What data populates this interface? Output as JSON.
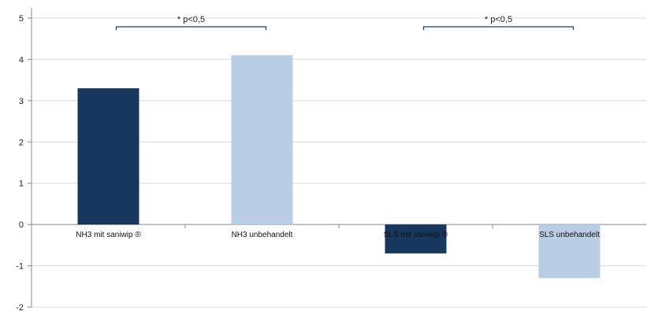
{
  "chart_data": {
    "type": "bar",
    "title": "",
    "xlabel": "",
    "ylabel": "",
    "ylim": [
      -2,
      5
    ],
    "yticks": [
      5,
      4,
      3,
      2,
      1,
      0,
      -1,
      -2
    ],
    "grid": true,
    "categories": [
      "NH3 mit saniwip ®",
      "NH3 unbehandelt",
      "SLS mit saniwip ®",
      "SLS unbehandelt"
    ],
    "values": [
      3.3,
      4.1,
      -0.7,
      -1.3
    ],
    "bar_colors": [
      "#17375e",
      "#b9cde5",
      "#17375e",
      "#b9cde5"
    ],
    "significance": [
      {
        "label": "* p<0,5",
        "from": 0,
        "to": 1
      },
      {
        "label": "* p<0,5",
        "from": 2,
        "to": 3
      }
    ]
  },
  "colors": {
    "grid": "#d9d9d9",
    "axis": "#888888",
    "bracket": "#1f3f6e"
  }
}
